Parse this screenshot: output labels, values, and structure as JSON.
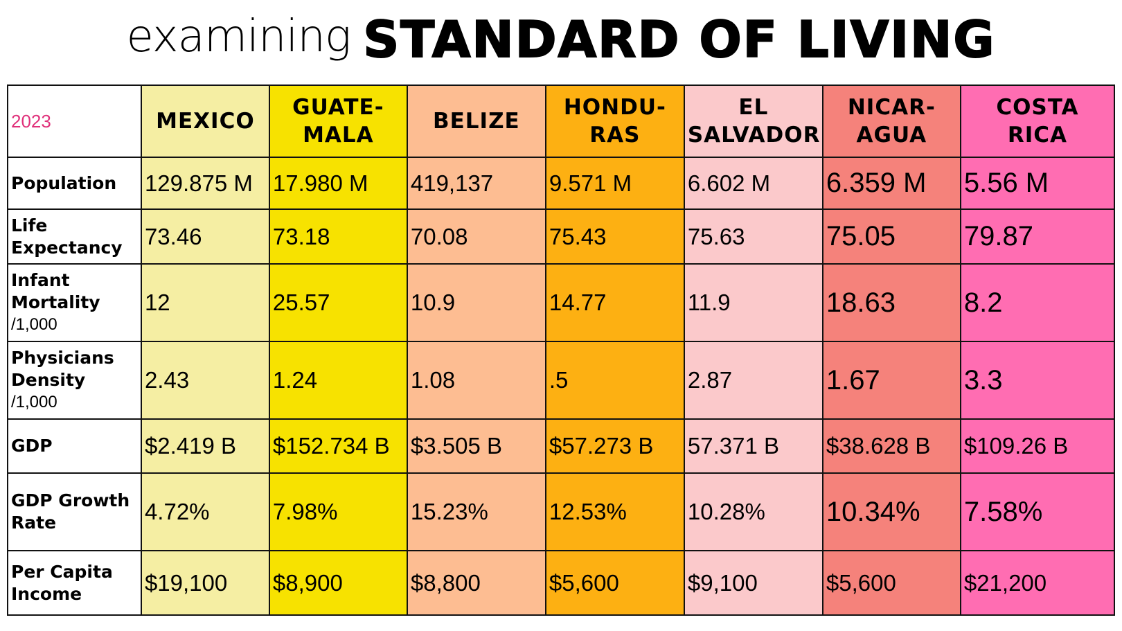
{
  "title": {
    "script": "examining",
    "bold": "Standard of Living"
  },
  "table": {
    "year": "2023",
    "countries": [
      {
        "key": "mexico",
        "name": "MEXICO",
        "color": "#f5eea3"
      },
      {
        "key": "guatemala",
        "name": "GUATE-\nMALA",
        "color": "#f7e200"
      },
      {
        "key": "belize",
        "name": "BELIZE",
        "color": "#fdbd92"
      },
      {
        "key": "honduras",
        "name": "HONDU-\nRAS",
        "color": "#fdb012"
      },
      {
        "key": "elsalvador",
        "name": "EL\nSALVADOR",
        "color": "#fbc9cb"
      },
      {
        "key": "nicaragua",
        "name": "NICAR-\nAGUA",
        "color": "#f5827b"
      },
      {
        "key": "costarica",
        "name": "COSTA\nRICA",
        "color": "#ff6db2"
      }
    ],
    "rows": [
      {
        "label": "Population",
        "unit": "",
        "values": [
          "129.875 M",
          "17.980 M",
          "419,137",
          "9.571 M",
          "6.602 M",
          "6.359 M",
          "5.56 M"
        ]
      },
      {
        "label": "Life Expectancy",
        "unit": "",
        "values": [
          "73.46",
          "73.18",
          "70.08",
          "75.43",
          "75.63",
          "75.05",
          "79.87"
        ]
      },
      {
        "label": "Infant Mortality",
        "unit": "/1,000",
        "values": [
          "12",
          "25.57",
          "10.9",
          "14.77",
          "11.9",
          "18.63",
          "8.2"
        ]
      },
      {
        "label": "Physicians Density",
        "unit": "/1,000",
        "values": [
          "2.43",
          "1.24",
          "1.08",
          ".5",
          "2.87",
          "1.67",
          "3.3"
        ]
      },
      {
        "label": "GDP",
        "unit": "",
        "values": [
          "$2.419 B",
          "$152.734 B",
          "$3.505 B",
          "$57.273 B",
          "57.371 B",
          "$38.628 B",
          "$109.26 B"
        ]
      },
      {
        "label": "GDP Growth Rate",
        "unit": "",
        "values": [
          "4.72%",
          "7.98%",
          "15.23%",
          "12.53%",
          "10.28%",
          "10.34%",
          "7.58%"
        ]
      },
      {
        "label": "Per Capita Income",
        "unit": "",
        "values": [
          "$19,100",
          "$8,900",
          "$8,800",
          "$5,600",
          "$9,100",
          "$5,600",
          "$21,200"
        ]
      }
    ]
  }
}
